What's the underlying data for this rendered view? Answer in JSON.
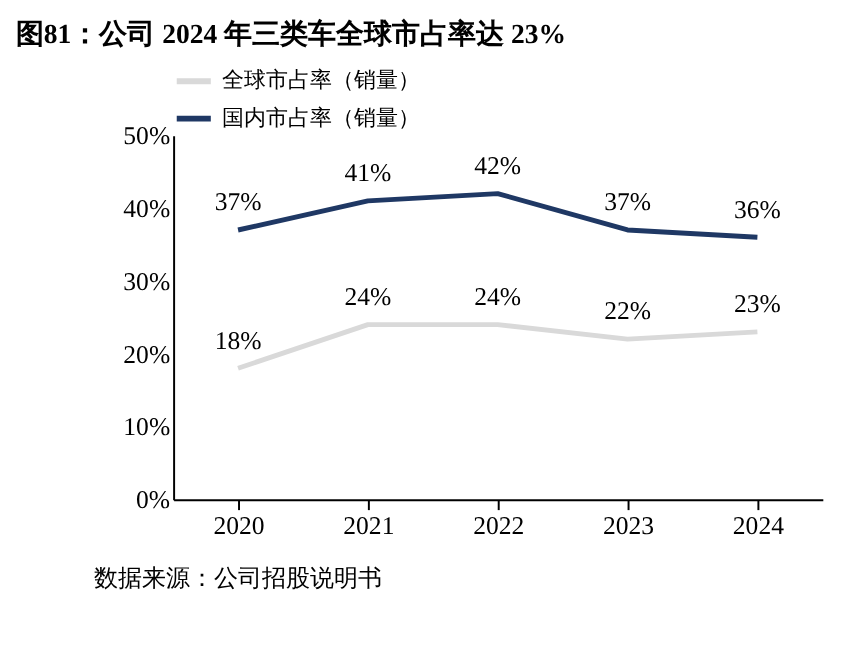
{
  "chart_data": {
    "type": "line",
    "title": "图81：公司 2024 年三类车全球市占率达 23%",
    "categories": [
      "2020",
      "2021",
      "2022",
      "2023",
      "2024"
    ],
    "series": [
      {
        "name": "全球市占率（销量）",
        "color": "#d9d9d9",
        "values": [
          18,
          24,
          24,
          22,
          23
        ],
        "value_labels": [
          "18%",
          "24%",
          "24%",
          "22%",
          "23%"
        ]
      },
      {
        "name": "国内市占率（销量）",
        "color": "#1f3864",
        "values": [
          37,
          41,
          42,
          37,
          36
        ],
        "value_labels": [
          "37%",
          "41%",
          "42%",
          "37%",
          "36%"
        ]
      }
    ],
    "ylim": [
      0,
      50
    ],
    "yticks": [
      {
        "value": 0,
        "label": "0%"
      },
      {
        "value": 10,
        "label": "10%"
      },
      {
        "value": 20,
        "label": "20%"
      },
      {
        "value": 30,
        "label": "30%"
      },
      {
        "value": 40,
        "label": "40%"
      },
      {
        "value": 50,
        "label": "50%"
      }
    ],
    "legend": "top",
    "marker": "none",
    "annotations": [
      "数据来源：公司招股说明书"
    ]
  }
}
